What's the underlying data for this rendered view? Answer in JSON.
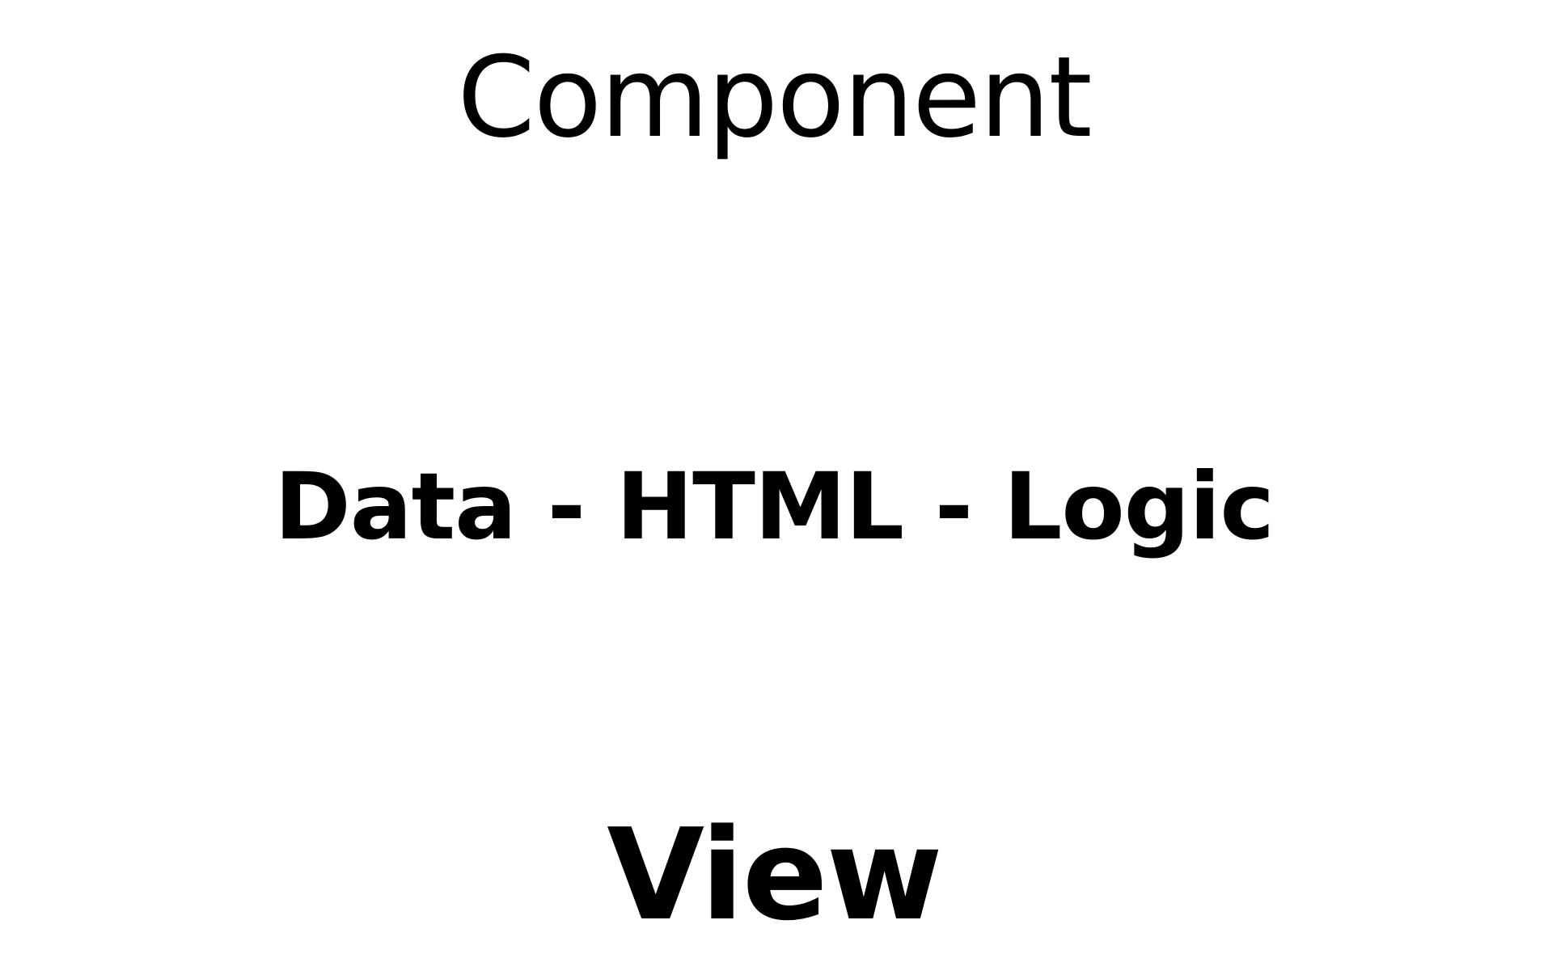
{
  "diagram": {
    "top_label": "Component",
    "middle_label": "Data - HTML - Logic",
    "bottom_label": "View",
    "colors": {
      "background": "#ffffff",
      "text": "#000000"
    }
  }
}
